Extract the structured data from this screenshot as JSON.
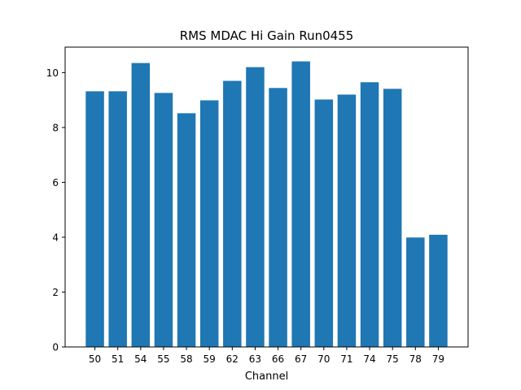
{
  "chart_data": {
    "type": "bar",
    "title": "RMS MDAC Hi Gain Run0455",
    "xlabel": "Channel",
    "ylabel": "",
    "categories": [
      "50",
      "51",
      "54",
      "55",
      "58",
      "59",
      "62",
      "63",
      "66",
      "67",
      "70",
      "71",
      "74",
      "75",
      "78",
      "79"
    ],
    "values": [
      9.32,
      9.32,
      10.35,
      9.26,
      8.52,
      8.99,
      9.7,
      10.2,
      9.44,
      10.41,
      9.02,
      9.2,
      9.65,
      9.41,
      3.99,
      4.09
    ],
    "ylim": [
      0,
      10.93
    ],
    "yticks": [
      0,
      2,
      4,
      6,
      8,
      10
    ],
    "bar_color": "#1f77b4",
    "grid": false,
    "legend": "none"
  }
}
